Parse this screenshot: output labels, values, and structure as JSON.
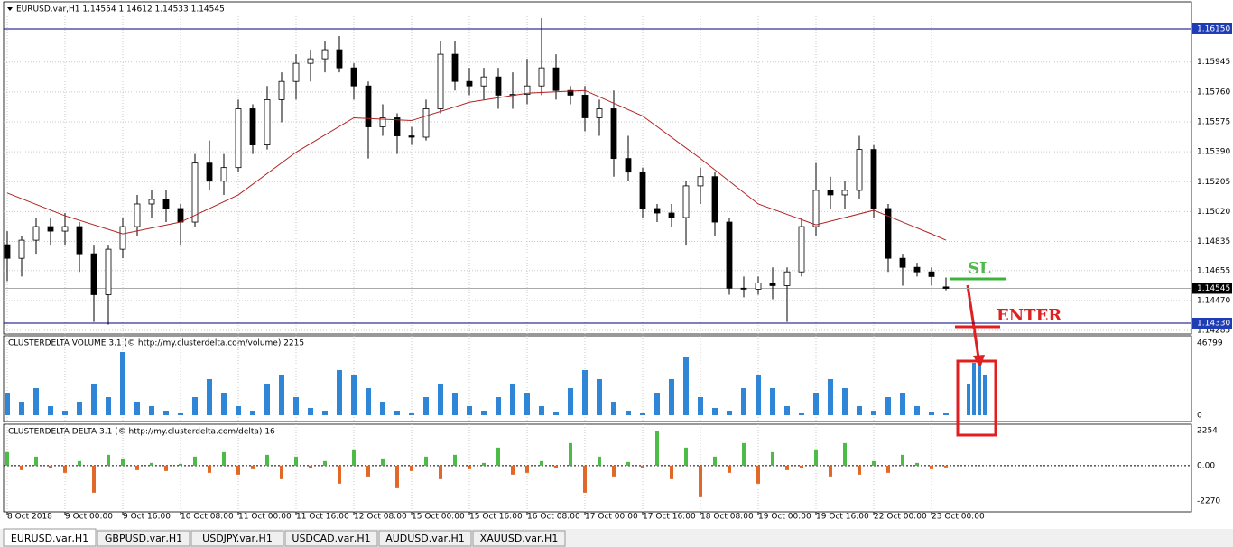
{
  "header": {
    "title": "EURUSD.var,H1  1.14554 1.14612 1.14533 1.14545"
  },
  "price_panel": {
    "type": "candlestick",
    "ylim": [
      1.14263,
      1.16228
    ],
    "yticks": [
      {
        "value": 1.1615,
        "label": "1.16150"
      },
      1.15945,
      {
        "value": 1.1576,
        "label": "1.15760"
      },
      1.15575,
      {
        "value": 1.1539,
        "label": "1.15390"
      },
      1.15205,
      {
        "value": 1.1502,
        "label": "1.15020"
      },
      1.14835,
      1.14655,
      {
        "value": 1.1447,
        "label": "1.14470"
      },
      1.14285
    ],
    "open": [
      1.14815,
      1.14731,
      1.14843,
      1.14927,
      1.14899,
      1.14927,
      1.14759,
      1.14506,
      1.14787,
      1.14927,
      1.15067,
      1.15095,
      1.15039,
      1.14955,
      1.1532,
      1.15208,
      1.15292,
      1.15656,
      1.15432,
      1.15712,
      1.15825,
      1.15937,
      1.15965,
      1.16021,
      1.15909,
      1.15797,
      1.15544,
      1.156,
      1.15488,
      1.1548,
      1.15656,
      1.15993,
      1.15825,
      1.15797,
      1.15853,
      1.1574,
      1.15745,
      1.15797,
      1.15909,
      1.15769,
      1.1574,
      1.156,
      1.15656,
      1.15348,
      1.15264,
      1.15039,
      1.15011,
      1.14983,
      1.15179,
      1.15236,
      1.14955,
      1.14546,
      1.1454,
      1.14579,
      1.14562,
      1.14647,
      1.14927,
      1.15151,
      1.15123,
      1.15151,
      1.15404,
      1.15039,
      1.14731,
      1.14675,
      1.14647,
      1.14554
    ],
    "high": [
      1.14899,
      1.14871,
      1.14983,
      1.14983,
      1.15011,
      1.14955,
      1.14815,
      1.14815,
      1.14983,
      1.15123,
      1.15151,
      1.15151,
      1.15067,
      1.15376,
      1.1546,
      1.15376,
      1.15712,
      1.15684,
      1.15797,
      1.15881,
      1.15993,
      1.16021,
      1.16077,
      1.16105,
      1.15937,
      1.15825,
      1.15684,
      1.15628,
      1.15544,
      1.15712,
      1.16077,
      1.16077,
      1.15909,
      1.15909,
      1.15909,
      1.15881,
      1.15965,
      1.16217,
      1.15993,
      1.15797,
      1.15797,
      1.15712,
      1.15769,
      1.15488,
      1.15292,
      1.15067,
      1.15067,
      1.15208,
      1.15292,
      1.15264,
      1.14983,
      1.14618,
      1.14618,
      1.14675,
      1.14675,
      1.14983,
      1.1532,
      1.15236,
      1.15208,
      1.15488,
      1.15432,
      1.15067,
      1.14759,
      1.14703,
      1.14675,
      1.14612
    ],
    "low": [
      1.1459,
      1.14618,
      1.14759,
      1.14815,
      1.14815,
      1.14647,
      1.14338,
      1.14321,
      1.14731,
      1.14871,
      1.14983,
      1.14955,
      1.14815,
      1.14927,
      1.15151,
      1.15123,
      1.15264,
      1.15376,
      1.15404,
      1.15572,
      1.15712,
      1.15825,
      1.15881,
      1.15881,
      1.15712,
      1.15348,
      1.15488,
      1.15376,
      1.15432,
      1.1546,
      1.15628,
      1.15769,
      1.1574,
      1.15712,
      1.15656,
      1.15656,
      1.15684,
      1.1574,
      1.15712,
      1.15684,
      1.15516,
      1.15488,
      1.15236,
      1.15208,
      1.14983,
      1.14955,
      1.14927,
      1.14815,
      1.15067,
      1.14871,
      1.14506,
      1.1449,
      1.14506,
      1.14478,
      1.14338,
      1.14618,
      1.14871,
      1.15039,
      1.15039,
      1.15095,
      1.14983,
      1.14647,
      1.14562,
      1.14618,
      1.14562,
      1.14533
    ],
    "close": [
      1.14731,
      1.14843,
      1.14927,
      1.14899,
      1.14927,
      1.14759,
      1.14506,
      1.14787,
      1.14927,
      1.15067,
      1.15095,
      1.15039,
      1.14955,
      1.1532,
      1.15208,
      1.15292,
      1.15656,
      1.15432,
      1.15712,
      1.15825,
      1.15937,
      1.15965,
      1.16021,
      1.15909,
      1.15797,
      1.15544,
      1.156,
      1.15488,
      1.1548,
      1.15656,
      1.15993,
      1.15825,
      1.15797,
      1.15853,
      1.1574,
      1.15745,
      1.15797,
      1.15909,
      1.15769,
      1.1574,
      1.156,
      1.15656,
      1.15348,
      1.15264,
      1.15039,
      1.15011,
      1.14983,
      1.15179,
      1.15236,
      1.14955,
      1.14546,
      1.1454,
      1.14579,
      1.14562,
      1.14647,
      1.14927,
      1.15151,
      1.15123,
      1.15151,
      1.15404,
      1.15039,
      1.14731,
      1.14675,
      1.14647,
      1.14618,
      1.14545
    ],
    "ma": {
      "color": "#b22222",
      "x": [
        0,
        4,
        8,
        12,
        16,
        20,
        24,
        28,
        32,
        36,
        40,
        44,
        48,
        52,
        56,
        60,
        64,
        65
      ],
      "values": [
        1.15135,
        1.14994,
        1.14882,
        1.14955,
        1.15123,
        1.15387,
        1.156,
        1.15583,
        1.15696,
        1.15752,
        1.15769,
        1.15611,
        1.15348,
        1.15067,
        1.14938,
        1.15028,
        1.14882,
        1.14843
      ]
    },
    "levels": [
      {
        "value": 1.1615,
        "label": "1.16150"
      },
      {
        "value": 1.1433,
        "label": "1.14330"
      }
    ],
    "current": {
      "value": 1.14545,
      "label": "1.14545"
    }
  },
  "volume_panel": {
    "type": "bar",
    "title": "CLUSTERDELTA VOLUME 3.1 (© http://my.clusterdelta.com/volume) 2215",
    "color": "#2f86d6",
    "ylim": [
      0,
      46799
    ],
    "yticks": [
      46799,
      0
    ],
    "values": [
      14625,
      8775,
      17550,
      5850,
      2925,
      8775,
      20475,
      11700,
      40950,
      8775,
      5850,
      2925,
      1755,
      11700,
      23400,
      14625,
      5850,
      2925,
      20475,
      26325,
      11700,
      4680,
      2925,
      29250,
      26325,
      17550,
      8775,
      2925,
      1755,
      11700,
      20475,
      14625,
      5850,
      2925,
      11700,
      20475,
      14625,
      5850,
      2340,
      17550,
      29250,
      23400,
      8775,
      2925,
      1755,
      14625,
      23400,
      38025,
      11700,
      4680,
      2925,
      17550,
      26325,
      17550,
      5850,
      1755,
      14625,
      23400,
      17550,
      5850,
      2925,
      11700,
      14625,
      5850,
      2340,
      1755
    ],
    "highlight_values": [
      20475,
      33930,
      32175,
      26325
    ]
  },
  "delta_panel": {
    "type": "bar",
    "title": "CLUSTERDELTA DELTA 3.1 (© http://my.clusterdelta.com/delta) 16",
    "colors": {
      "positive": "#4cbb47",
      "negative": "#e0692a"
    },
    "ylim": [
      -2270,
      2254
    ],
    "yticks": [
      2254,
      {
        "value": 0,
        "label": "0.00"
      },
      -2270
    ],
    "values": [
      870,
      -290,
      580,
      -174,
      -464,
      290,
      -1740,
      696,
      464,
      -290,
      174,
      -348,
      116,
      580,
      -464,
      870,
      -580,
      -232,
      696,
      -870,
      580,
      -174,
      290,
      -1160,
      1044,
      -696,
      464,
      -1450,
      -348,
      580,
      -870,
      696,
      -232,
      174,
      1160,
      -580,
      -464,
      290,
      -174,
      1450,
      -1740,
      580,
      -696,
      232,
      -174,
      2204,
      -870,
      1160,
      -2030,
      580,
      -464,
      1450,
      -1160,
      870,
      -290,
      -174,
      1044,
      -696,
      1450,
      -580,
      290,
      -464,
      696,
      174,
      -232,
      -116
    ]
  },
  "time_labels": [
    "8 Oct 2018",
    "9 Oct 00:00",
    "9 Oct 16:00",
    "10 Oct 08:00",
    "11 Oct 00:00",
    "11 Oct 16:00",
    "12 Oct 08:00",
    "15 Oct 00:00",
    "15 Oct 16:00",
    "16 Oct 08:00",
    "17 Oct 00:00",
    "17 Oct 16:00",
    "18 Oct 08:00",
    "19 Oct 00:00",
    "19 Oct 16:00",
    "22 Oct 00:00",
    "23 Oct 00:00"
  ],
  "annotations": {
    "sl": "SL",
    "enter": "ENTER"
  },
  "tabs": [
    "EURUSD.var,H1",
    "GBPUSD.var,H1",
    "USDJPY.var,H1",
    "USDCAD.var,H1",
    "AUDUSD.var,H1",
    "XAUUSD.var,H1"
  ]
}
